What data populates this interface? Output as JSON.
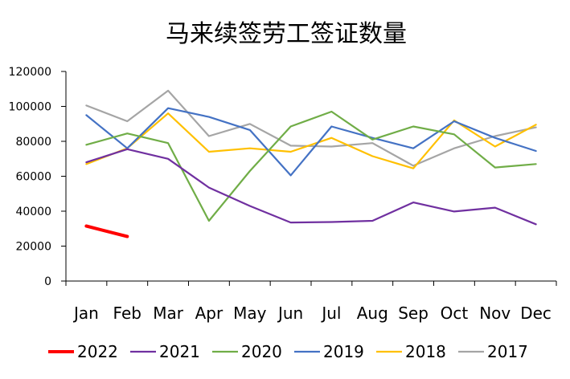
{
  "chart_data": {
    "type": "line",
    "title": "马来续签劳工签证数量",
    "xlabel": "",
    "ylabel": "",
    "categories": [
      "Jan",
      "Feb",
      "Mar",
      "Apr",
      "May",
      "Jun",
      "Jul",
      "Aug",
      "Sep",
      "Oct",
      "Nov",
      "Dec"
    ],
    "ylim": [
      0,
      120000
    ],
    "yticks": [
      0,
      20000,
      40000,
      60000,
      80000,
      100000,
      120000
    ],
    "grid": false,
    "legend_position": "bottom",
    "series": [
      {
        "name": "2022",
        "color": "#ff0000",
        "values": [
          31500,
          25500,
          null,
          null,
          null,
          null,
          null,
          null,
          null,
          null,
          null,
          null
        ]
      },
      {
        "name": "2021",
        "color": "#7030a0",
        "values": [
          68000,
          75500,
          70000,
          53500,
          43000,
          33500,
          33800,
          34500,
          45000,
          39800,
          42000,
          32500
        ]
      },
      {
        "name": "2020",
        "color": "#70ad47",
        "values": [
          78000,
          84500,
          79000,
          34500,
          63000,
          88500,
          97000,
          81000,
          88500,
          84000,
          65000,
          67000
        ]
      },
      {
        "name": "2019",
        "color": "#4472c4",
        "values": [
          95000,
          76000,
          99000,
          94000,
          86500,
          60500,
          88500,
          82000,
          76000,
          91500,
          82000,
          74500
        ]
      },
      {
        "name": "2018",
        "color": "#ffc000",
        "values": [
          67000,
          76000,
          96000,
          74000,
          76000,
          74000,
          82000,
          71500,
          64500,
          92000,
          77000,
          89500
        ]
      },
      {
        "name": "2017",
        "color": "#a5a5a5",
        "values": [
          100500,
          91500,
          109000,
          83000,
          90000,
          77500,
          77000,
          79000,
          66000,
          76000,
          83000,
          88000
        ]
      }
    ]
  }
}
